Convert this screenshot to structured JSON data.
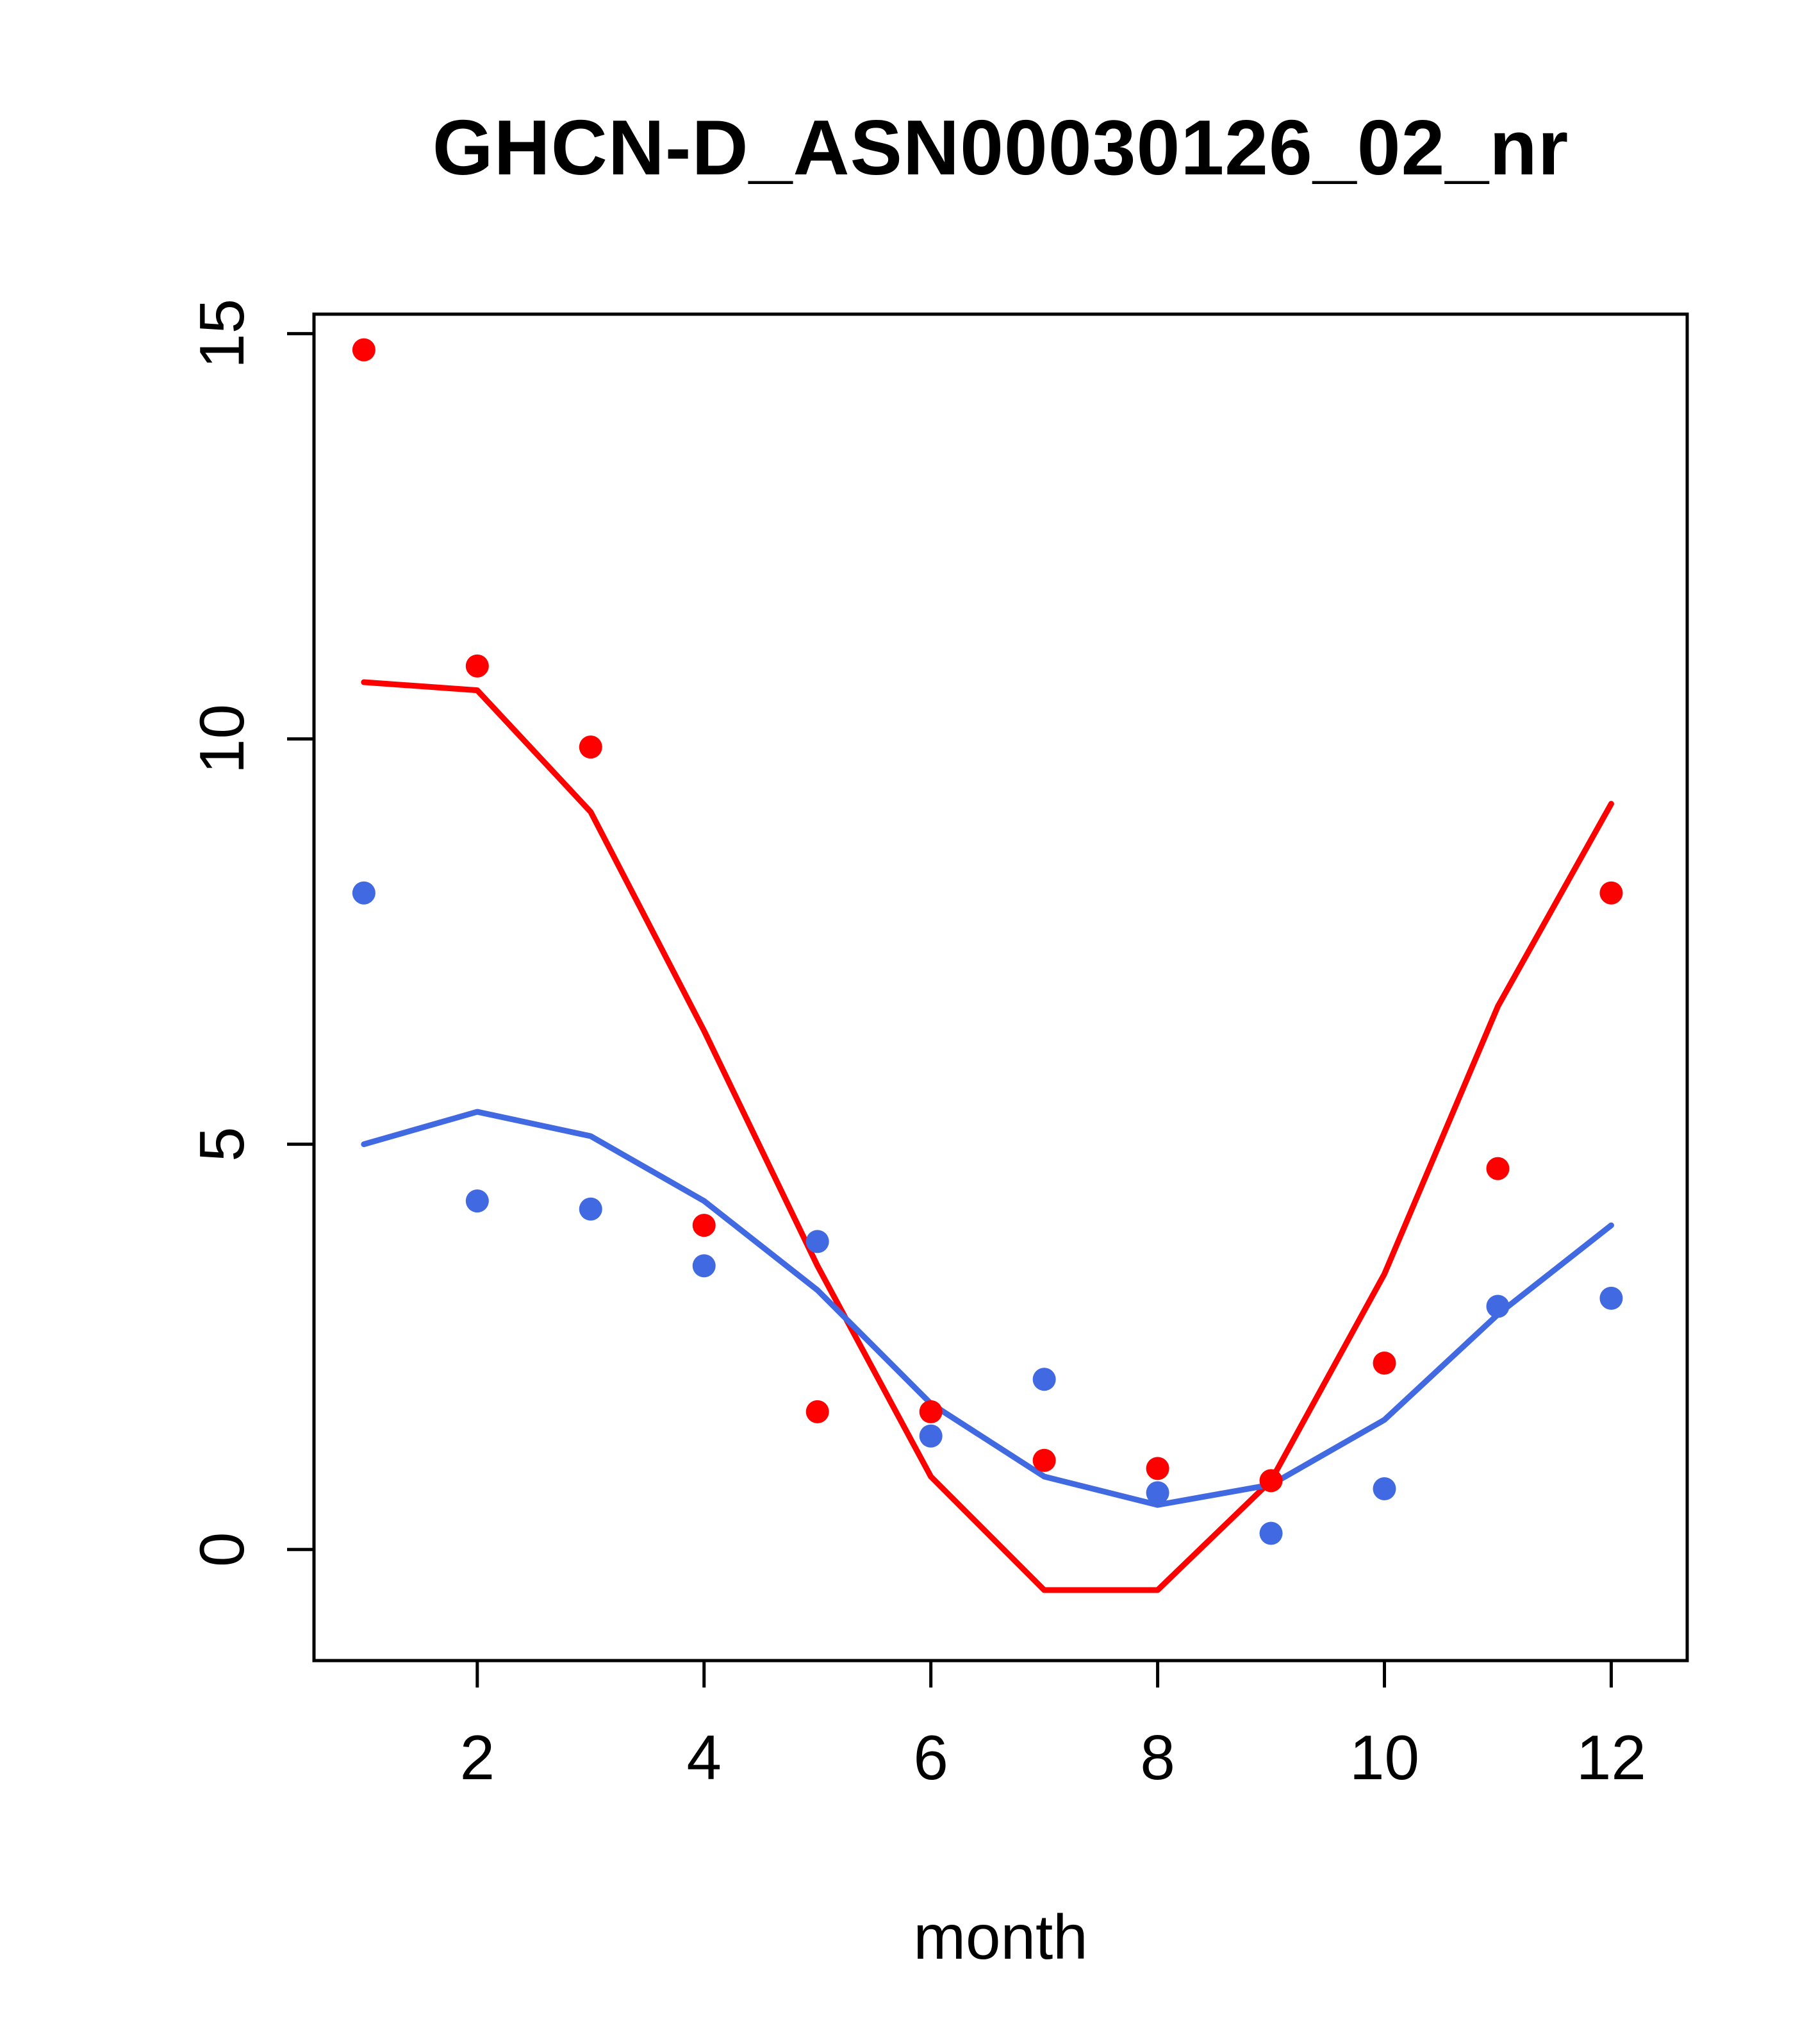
{
  "chart_data": {
    "type": "scatter",
    "title": "GHCN-D_ASN00030126_02_nr",
    "xlabel": "month",
    "ylabel": "",
    "x": [
      1,
      2,
      3,
      4,
      5,
      6,
      7,
      8,
      9,
      10,
      11,
      12
    ],
    "xlim": [
      0.56,
      12.67
    ],
    "ylim": [
      -1.37,
      15.24
    ],
    "xticks": [
      2,
      4,
      6,
      8,
      10,
      12
    ],
    "yticks": [
      0,
      5,
      10,
      15
    ],
    "grid": false,
    "legend": "none",
    "colors": {
      "red": "#ff0000",
      "blue": "#4169e1",
      "axis": "#000000"
    },
    "series": [
      {
        "name": "red-line",
        "kind": "line",
        "color": "#ff0000",
        "values": [
          10.7,
          10.6,
          9.1,
          6.4,
          3.5,
          0.9,
          -0.5,
          -0.5,
          0.85,
          3.4,
          6.7,
          9.2
        ]
      },
      {
        "name": "blue-line",
        "kind": "line",
        "color": "#4169e1",
        "values": [
          5.0,
          5.4,
          5.1,
          4.3,
          3.2,
          1.8,
          0.9,
          0.55,
          0.8,
          1.6,
          2.9,
          4.0
        ]
      },
      {
        "name": "red-points",
        "kind": "points",
        "color": "#ff0000",
        "values": [
          14.8,
          10.9,
          9.9,
          4.0,
          1.7,
          1.7,
          1.1,
          1.0,
          0.85,
          2.3,
          4.7,
          8.1
        ]
      },
      {
        "name": "blue-points",
        "kind": "points",
        "color": "#4169e1",
        "values": [
          8.1,
          4.3,
          4.2,
          3.5,
          3.8,
          1.4,
          2.1,
          0.7,
          0.2,
          0.75,
          3.0,
          3.1
        ]
      }
    ]
  }
}
